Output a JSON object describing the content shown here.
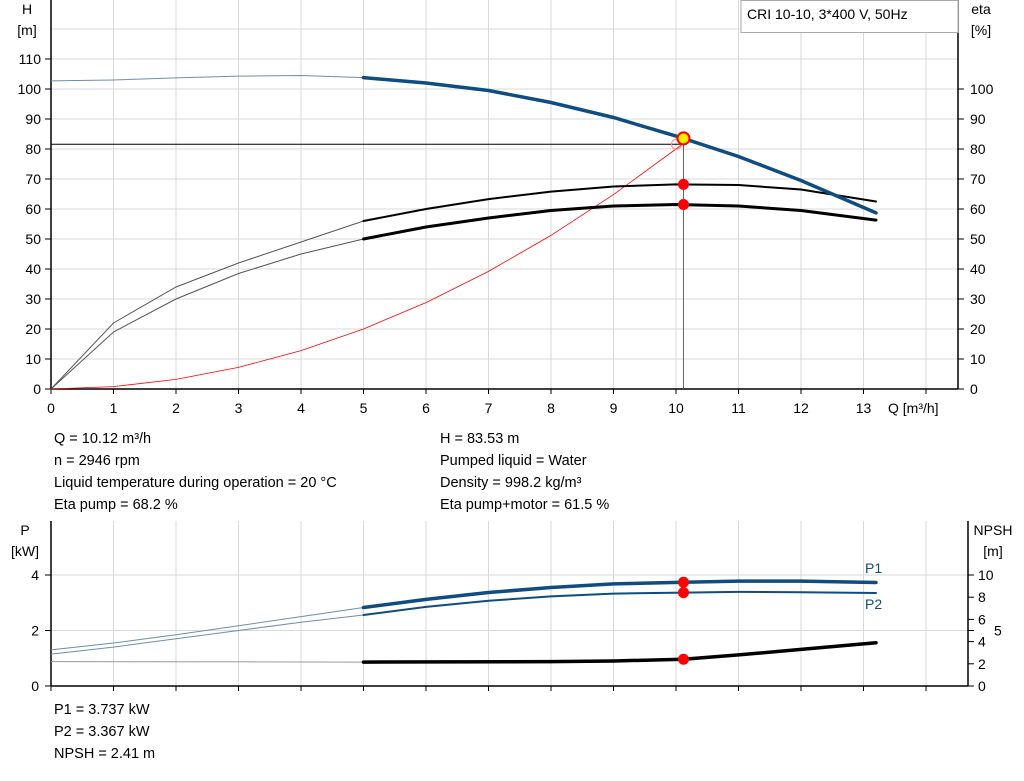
{
  "chart_data": [
    {
      "type": "line",
      "title": "CRI 10-10, 3*400 V, 50Hz",
      "xlabel": "Q [m³/h]",
      "ylabel_left": "H",
      "ylabel_left_unit": "[m]",
      "ylabel_right": "eta",
      "ylabel_right_unit": "[%]",
      "xlim": [
        0,
        14.5
      ],
      "ylim_left": [
        0,
        123
      ],
      "ylim_right": [
        0,
        123
      ],
      "grid": true,
      "x_ticks": [
        "0",
        "1",
        "2",
        "3",
        "4",
        "5",
        "6",
        "7",
        "8",
        "9",
        "10",
        "11",
        "12",
        "13"
      ],
      "y_left_ticks": [
        "0",
        "10",
        "20",
        "30",
        "40",
        "50",
        "60",
        "70",
        "80",
        "90",
        "100",
        "110"
      ],
      "y_right_ticks": [
        "0",
        "10",
        "20",
        "30",
        "40",
        "50",
        "60",
        "70",
        "80",
        "90",
        "100"
      ],
      "series": [
        {
          "key": "H",
          "axis": "left",
          "color": "#0f4c81",
          "x": [
            0,
            1,
            2,
            3,
            4,
            5,
            6,
            7,
            8,
            9,
            10,
            10.12,
            11,
            12,
            13.2
          ],
          "y": [
            102.7,
            103,
            103.7,
            104.3,
            104.5,
            103.8,
            102,
            99.5,
            95.5,
            90.5,
            84.3,
            83.53,
            77.5,
            69.5,
            58.7
          ]
        },
        {
          "key": "eta_pump",
          "axis": "right",
          "color": "#000000",
          "x": [
            0,
            1,
            2,
            3,
            4,
            5,
            6,
            7,
            8,
            9,
            10,
            11,
            12,
            13.2
          ],
          "y": [
            0,
            22,
            34,
            42,
            49,
            56,
            60,
            63.3,
            65.8,
            67.5,
            68.2,
            68,
            66.5,
            62.5
          ]
        },
        {
          "key": "eta_pump_motor",
          "axis": "right",
          "color": "#000000",
          "x": [
            0,
            1,
            2,
            3,
            4,
            5,
            6,
            7,
            8,
            9,
            10,
            11,
            12,
            13.2
          ],
          "y": [
            0,
            19,
            30,
            38.5,
            45,
            50,
            54,
            57,
            59.5,
            61,
            61.5,
            61,
            59.5,
            56.3
          ]
        },
        {
          "key": "system",
          "axis": "left",
          "color": "#ff0000",
          "x": [
            0,
            1,
            2,
            3,
            4,
            5,
            6,
            7,
            8,
            9,
            10,
            10.1
          ],
          "y": [
            0,
            0.8,
            3.2,
            7.2,
            12.8,
            20,
            28.8,
            39.2,
            51.2,
            64.8,
            80,
            81.6
          ]
        }
      ],
      "duty_point": {
        "Q": 10.12,
        "H": 83.53,
        "H_required": 81.6,
        "eta_pump": 68.2,
        "eta_pump_motor": 61.5
      }
    },
    {
      "type": "line",
      "ylabel_left": "P",
      "ylabel_left_unit": "[kW]",
      "ylabel_right": "NPSH",
      "ylabel_right_unit": "[m]",
      "xlim": [
        0,
        14.5
      ],
      "ylim_left": [
        0,
        6
      ],
      "ylim_right": [
        0,
        15
      ],
      "grid": true,
      "y_left_ticks": [
        "0",
        "2",
        "4"
      ],
      "y_right_ticks": [
        "0",
        "2",
        "4",
        "5",
        "6",
        "8",
        "10"
      ],
      "series": [
        {
          "key": "P1",
          "name": "P1",
          "axis": "left",
          "color": "#0f4c81",
          "x": [
            0,
            1,
            2,
            3,
            4,
            5,
            6,
            7,
            8,
            9,
            10.12,
            11,
            12,
            13.2
          ],
          "y": [
            1.3,
            1.55,
            1.85,
            2.17,
            2.5,
            2.83,
            3.12,
            3.37,
            3.55,
            3.68,
            3.737,
            3.78,
            3.78,
            3.73
          ]
        },
        {
          "key": "P2",
          "name": "P2",
          "axis": "left",
          "color": "#0f4c81",
          "x": [
            0,
            1,
            2,
            3,
            4,
            5,
            6,
            7,
            8,
            9,
            10.12,
            11,
            12,
            13.2
          ],
          "y": [
            1.15,
            1.4,
            1.7,
            2.0,
            2.3,
            2.56,
            2.85,
            3.07,
            3.23,
            3.33,
            3.367,
            3.39,
            3.38,
            3.35
          ]
        },
        {
          "key": "NPSH",
          "axis": "right",
          "color": "#000000",
          "x": [
            0,
            5,
            8,
            9,
            10.12,
            11,
            12,
            13.2
          ],
          "y": [
            2.2,
            2.15,
            2.2,
            2.25,
            2.41,
            2.8,
            3.3,
            3.9
          ]
        }
      ],
      "duty_point": {
        "Q": 10.12,
        "P1": 3.737,
        "P2": 3.367,
        "NPSH": 2.41
      }
    }
  ],
  "info_left": [
    "Q = 10.12 m³/h",
    "n = 2946 rpm",
    "Liquid temperature during operation = 20 °C",
    "Eta pump = 68.2 %"
  ],
  "info_right": [
    "H = 83.53 m",
    "Pumped liquid = Water",
    "Density = 998.2 kg/m³",
    "Eta pump+motor = 61.5 %"
  ],
  "info_bottom": [
    "P1 = 3.737 kW",
    "P2 = 3.367 kW",
    "NPSH = 2.41 m"
  ],
  "colors": {
    "curve_blue": "#0f4c81",
    "duty_marker": "#ff0000",
    "duty_fill": "#ffee00",
    "grid": "#d9d9d9"
  }
}
